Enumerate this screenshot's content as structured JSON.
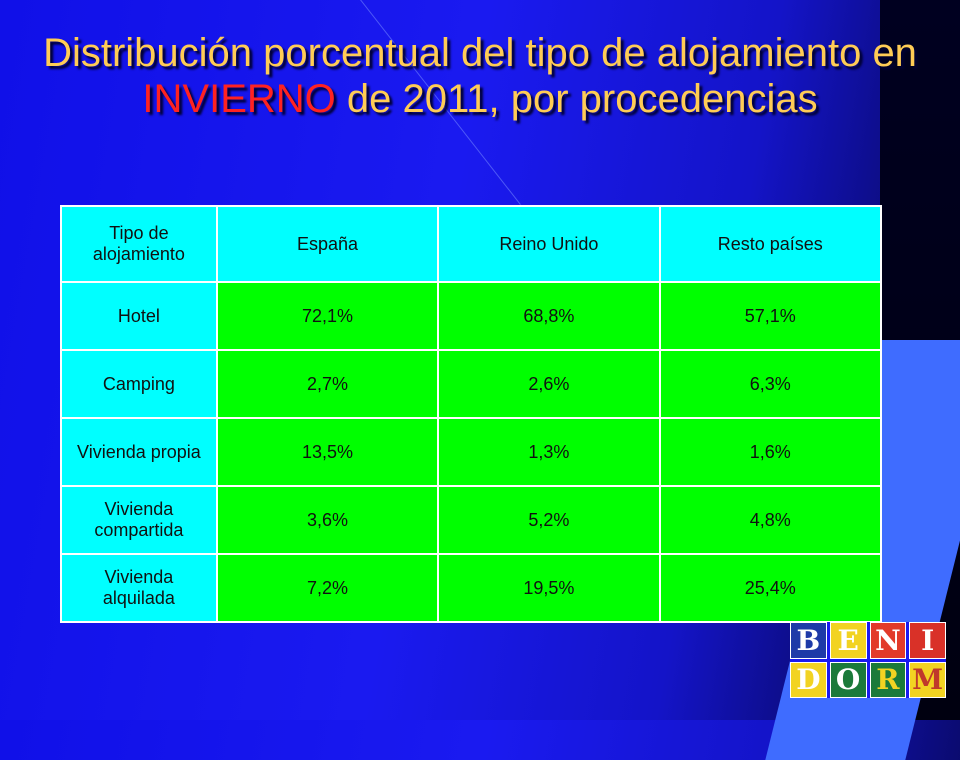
{
  "title": {
    "part1": "Distribución porcentual del tipo de alojamiento en ",
    "highlight": "INVIERNO",
    "part2": " de 2011, por procedencias"
  },
  "table": {
    "headers": [
      "Tipo de alojamiento",
      "España",
      "Reino Unido",
      "Resto países"
    ],
    "rows": [
      [
        "Hotel",
        "72,1%",
        "68,8%",
        "57,1%"
      ],
      [
        "Camping",
        "2,7%",
        "2,6%",
        "6,3%"
      ],
      [
        "Vivienda propia",
        "13,5%",
        "1,3%",
        "1,6%"
      ],
      [
        "Vivienda compartida",
        "3,6%",
        "5,2%",
        "4,8%"
      ],
      [
        "Vivienda alquilada",
        "7,2%",
        "19,5%",
        "25,4%"
      ]
    ]
  },
  "logo": {
    "letters": [
      "B",
      "E",
      "N",
      "I",
      "D",
      "O",
      "R",
      "M"
    ]
  },
  "colors": {
    "title": "#ffcc55",
    "highlight": "#ff2222",
    "header_cell": "#00ffff",
    "value_cell": "#00ff00"
  }
}
